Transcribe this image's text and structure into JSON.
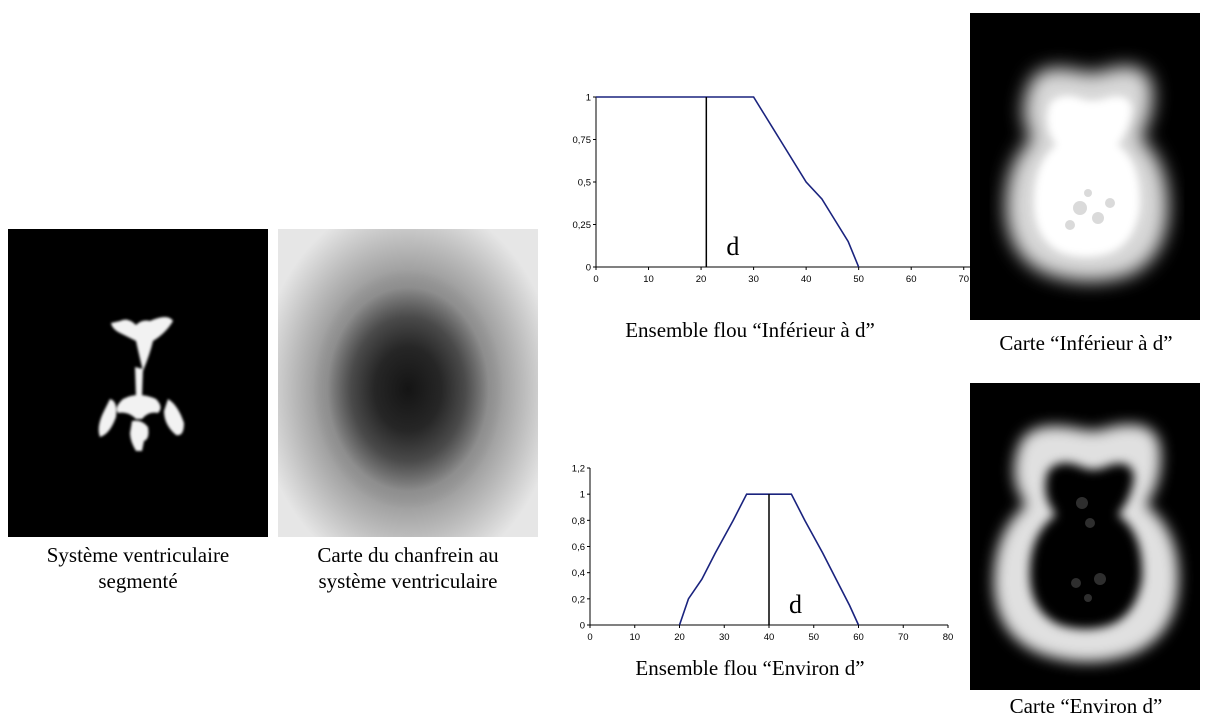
{
  "captions": {
    "segmented": [
      "Système ventriculaire",
      "segmenté"
    ],
    "chamfer": [
      "Carte du chanfrein au",
      "système ventriculaire"
    ],
    "set_inferior": "Ensemble flou “Inférieur à d”",
    "map_inferior": "Carte “Inférieur à d”",
    "set_environ": "Ensemble flou “Environ d”",
    "map_environ": "Carte “Environ d”"
  },
  "colors": {
    "curve": "#1a237e",
    "axis": "#000000",
    "image_bg": "#000000",
    "shape": "#ffffff"
  },
  "chart_data": [
    {
      "type": "line",
      "title": "",
      "xlabel": "",
      "ylabel": "",
      "xlim": [
        0,
        75
      ],
      "ylim": [
        0,
        1
      ],
      "x_ticks": [
        0,
        10,
        20,
        30,
        40,
        50,
        60,
        70
      ],
      "y_ticks": [
        "0",
        "0,25",
        "0,5",
        "0,75",
        "1"
      ],
      "y_tick_values": [
        0,
        0.25,
        0.5,
        0.75,
        1
      ],
      "series": [
        {
          "x": [
            0,
            30,
            32,
            35,
            40,
            43,
            45,
            48,
            50
          ],
          "y": [
            1,
            1,
            0.9,
            0.75,
            0.5,
            0.4,
            0.3,
            0.15,
            0
          ]
        }
      ],
      "marker": {
        "x": 21,
        "label": "d"
      },
      "grid": false
    },
    {
      "type": "line",
      "title": "",
      "xlabel": "",
      "ylabel": "",
      "xlim": [
        0,
        80
      ],
      "ylim": [
        0,
        1.2
      ],
      "x_ticks": [
        0,
        10,
        20,
        30,
        40,
        50,
        60,
        70,
        80
      ],
      "y_ticks": [
        "0",
        "0,2",
        "0,4",
        "0,6",
        "0,8",
        "1",
        "1,2"
      ],
      "y_tick_values": [
        0,
        0.2,
        0.4,
        0.6,
        0.8,
        1,
        1.2
      ],
      "series": [
        {
          "x": [
            20,
            22,
            25,
            28,
            32,
            35,
            45,
            48,
            52,
            55,
            58,
            60
          ],
          "y": [
            0,
            0.2,
            0.35,
            0.55,
            0.8,
            1,
            1,
            0.8,
            0.55,
            0.35,
            0.15,
            0
          ]
        }
      ],
      "marker": {
        "x": 40,
        "label": "d"
      },
      "grid": false
    }
  ]
}
